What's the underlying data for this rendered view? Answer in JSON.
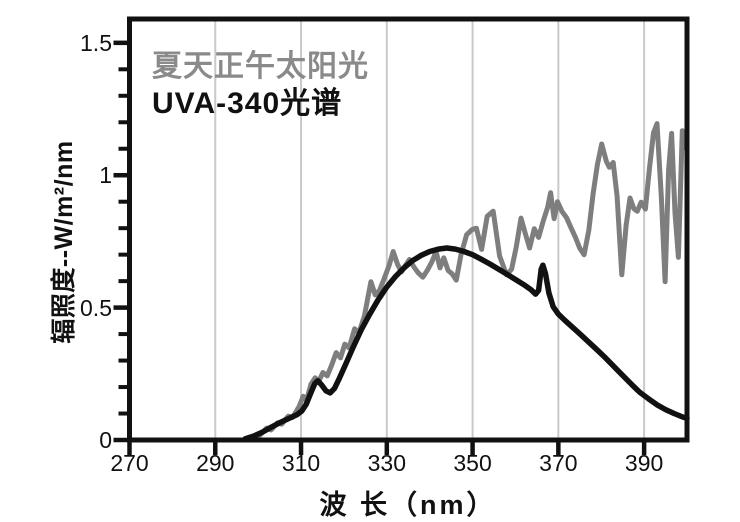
{
  "figure": {
    "background": "#ffffff"
  },
  "legend": {
    "items": [
      {
        "label": "夏天正午太阳光",
        "color": "#8a8a8a"
      },
      {
        "label": "UVA-340光谱",
        "color": "#111111"
      }
    ]
  },
  "chart_data": {
    "type": "line",
    "title": "",
    "xlabel": "波 长（nm）",
    "ylabel": "辐照度--W/m²/nm",
    "xlim": [
      270,
      400
    ],
    "ylim": [
      0,
      1.59
    ],
    "x_ticks": [
      {
        "value": 270,
        "label": "270"
      },
      {
        "value": 290,
        "label": "290"
      },
      {
        "value": 310,
        "label": "310"
      },
      {
        "value": 330,
        "label": "330"
      },
      {
        "value": 350,
        "label": "350"
      },
      {
        "value": 370,
        "label": "370"
      },
      {
        "value": 390,
        "label": "390"
      }
    ],
    "y_ticks": [
      {
        "value": 0,
        "label": "0"
      },
      {
        "value": 0.5,
        "label": "0.5"
      },
      {
        "value": 1,
        "label": "1"
      },
      {
        "value": 1.5,
        "label": "1.5"
      }
    ],
    "y_minor_tick_step": 0.1,
    "y_minor_tick_max": 1.5,
    "grid": {
      "vertical_lines_at": [
        290,
        310,
        330,
        350,
        370,
        390
      ],
      "color": "#c9c9c9",
      "horizontal": false
    },
    "axis_color": "#111111",
    "legend_position": "top-left-inside",
    "series": [
      {
        "name": "夏天正午太阳光",
        "color": "#7e7e7e",
        "stroke_width": 5,
        "points": [
          [
            299,
            0.005
          ],
          [
            300.5,
            0.02
          ],
          [
            302,
            0.045
          ],
          [
            303,
            0.038
          ],
          [
            304.5,
            0.065
          ],
          [
            305.5,
            0.06
          ],
          [
            307,
            0.09
          ],
          [
            308,
            0.085
          ],
          [
            309.5,
            0.125
          ],
          [
            310.5,
            0.165
          ],
          [
            311.3,
            0.15
          ],
          [
            312.3,
            0.21
          ],
          [
            313.3,
            0.235
          ],
          [
            314.1,
            0.22
          ],
          [
            315.1,
            0.255
          ],
          [
            316.1,
            0.242
          ],
          [
            317.2,
            0.285
          ],
          [
            318.2,
            0.33
          ],
          [
            319.2,
            0.31
          ],
          [
            320.2,
            0.362
          ],
          [
            321.2,
            0.348
          ],
          [
            322.5,
            0.42
          ],
          [
            323.5,
            0.405
          ],
          [
            324.8,
            0.47
          ],
          [
            326.3,
            0.598
          ],
          [
            327.3,
            0.548
          ],
          [
            328.3,
            0.565
          ],
          [
            329.4,
            0.61
          ],
          [
            330.5,
            0.658
          ],
          [
            331.5,
            0.712
          ],
          [
            332.5,
            0.664
          ],
          [
            333.4,
            0.635
          ],
          [
            334.3,
            0.658
          ],
          [
            335.3,
            0.682
          ],
          [
            336.3,
            0.654
          ],
          [
            337.3,
            0.632
          ],
          [
            338.4,
            0.615
          ],
          [
            339.5,
            0.642
          ],
          [
            340.5,
            0.672
          ],
          [
            341.5,
            0.712
          ],
          [
            342.4,
            0.65
          ],
          [
            343.3,
            0.688
          ],
          [
            344.3,
            0.64
          ],
          [
            345.2,
            0.628
          ],
          [
            346.2,
            0.604
          ],
          [
            347.3,
            0.7
          ],
          [
            348.6,
            0.775
          ],
          [
            349.9,
            0.795
          ],
          [
            350.9,
            0.8
          ],
          [
            352.1,
            0.72
          ],
          [
            353.4,
            0.845
          ],
          [
            354.8,
            0.864
          ],
          [
            356.3,
            0.695
          ],
          [
            357.9,
            0.624
          ],
          [
            359.1,
            0.645
          ],
          [
            360.2,
            0.73
          ],
          [
            361.3,
            0.838
          ],
          [
            362.3,
            0.78
          ],
          [
            363.3,
            0.725
          ],
          [
            364.4,
            0.798
          ],
          [
            365.4,
            0.765
          ],
          [
            366.5,
            0.828
          ],
          [
            367.5,
            0.878
          ],
          [
            368.2,
            0.934
          ],
          [
            369,
            0.836
          ],
          [
            369.8,
            0.9
          ],
          [
            370.9,
            0.862
          ],
          [
            371.9,
            0.84
          ],
          [
            373,
            0.8
          ],
          [
            373.9,
            0.768
          ],
          [
            375,
            0.724
          ],
          [
            376,
            0.7
          ],
          [
            377.1,
            0.792
          ],
          [
            378.1,
            0.93
          ],
          [
            379.1,
            1.04
          ],
          [
            380.1,
            1.118
          ],
          [
            381.2,
            1.052
          ],
          [
            381.9,
            1.03
          ],
          [
            382.8,
            1.048
          ],
          [
            383.7,
            0.92
          ],
          [
            384.8,
            0.624
          ],
          [
            385.8,
            0.81
          ],
          [
            386.7,
            0.914
          ],
          [
            387.6,
            0.874
          ],
          [
            388.4,
            0.864
          ],
          [
            389.3,
            0.898
          ],
          [
            390.3,
            0.872
          ],
          [
            391.2,
            1.02
          ],
          [
            392.2,
            1.16
          ],
          [
            393,
            1.195
          ],
          [
            394,
            0.92
          ],
          [
            394.9,
            0.598
          ],
          [
            395.7,
            1.02
          ],
          [
            396.4,
            1.158
          ],
          [
            397.2,
            0.858
          ],
          [
            398,
            0.69
          ],
          [
            398.9,
            1.168
          ],
          [
            399.5,
            1.105
          ],
          [
            400,
            1.12
          ]
        ]
      },
      {
        "name": "UVA-340光谱",
        "color": "#111111",
        "stroke_width": 5.5,
        "points": [
          [
            297,
            0.005
          ],
          [
            299,
            0.015
          ],
          [
            301,
            0.03
          ],
          [
            303,
            0.048
          ],
          [
            305,
            0.065
          ],
          [
            307,
            0.08
          ],
          [
            309,
            0.095
          ],
          [
            310.2,
            0.11
          ],
          [
            311.2,
            0.135
          ],
          [
            312.2,
            0.175
          ],
          [
            313.2,
            0.213
          ],
          [
            313.9,
            0.224
          ],
          [
            314.8,
            0.208
          ],
          [
            315.8,
            0.186
          ],
          [
            316.8,
            0.178
          ],
          [
            317.8,
            0.195
          ],
          [
            319,
            0.235
          ],
          [
            320.5,
            0.29
          ],
          [
            322,
            0.345
          ],
          [
            324,
            0.415
          ],
          [
            326,
            0.475
          ],
          [
            328,
            0.53
          ],
          [
            330,
            0.578
          ],
          [
            332,
            0.617
          ],
          [
            334,
            0.65
          ],
          [
            336,
            0.677
          ],
          [
            338,
            0.697
          ],
          [
            340,
            0.712
          ],
          [
            342,
            0.721
          ],
          [
            344,
            0.725
          ],
          [
            346,
            0.721
          ],
          [
            348,
            0.712
          ],
          [
            350,
            0.7
          ],
          [
            352,
            0.683
          ],
          [
            354,
            0.665
          ],
          [
            356,
            0.646
          ],
          [
            358,
            0.626
          ],
          [
            360,
            0.606
          ],
          [
            362,
            0.586
          ],
          [
            363.6,
            0.568
          ],
          [
            364.7,
            0.551
          ],
          [
            365.4,
            0.565
          ],
          [
            366,
            0.645
          ],
          [
            366.4,
            0.66
          ],
          [
            367,
            0.628
          ],
          [
            367.8,
            0.555
          ],
          [
            368.8,
            0.503
          ],
          [
            370,
            0.476
          ],
          [
            371.5,
            0.452
          ],
          [
            373,
            0.43
          ],
          [
            375,
            0.401
          ],
          [
            377,
            0.371
          ],
          [
            379,
            0.341
          ],
          [
            381,
            0.31
          ],
          [
            383,
            0.277
          ],
          [
            385,
            0.244
          ],
          [
            387,
            0.211
          ],
          [
            389,
            0.18
          ],
          [
            391,
            0.156
          ],
          [
            393,
            0.133
          ],
          [
            395,
            0.115
          ],
          [
            397,
            0.1
          ],
          [
            399,
            0.087
          ],
          [
            400,
            0.082
          ]
        ]
      }
    ]
  }
}
